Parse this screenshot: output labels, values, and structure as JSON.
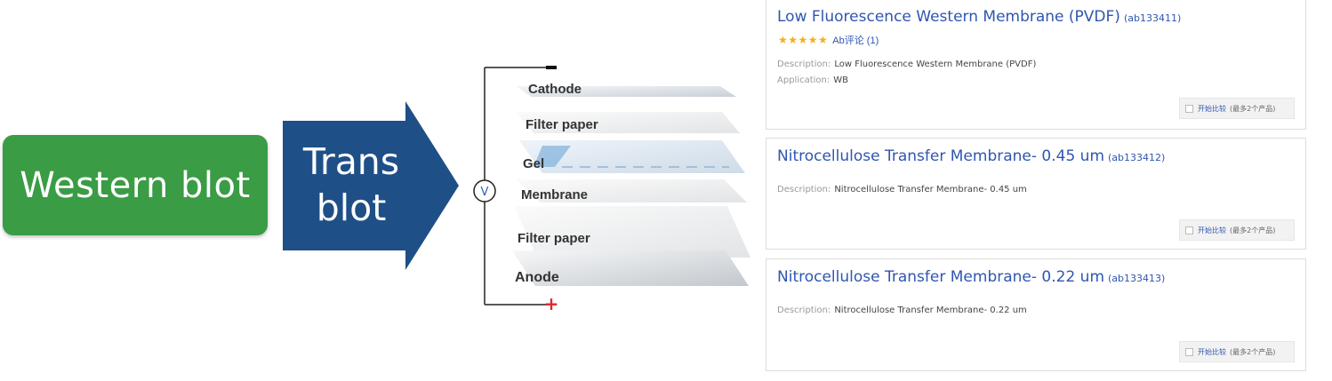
{
  "left_block": {
    "label": "Western blot",
    "color": "#3a9c45"
  },
  "arrow": {
    "line1": "Trans",
    "line2": "blot",
    "color": "#1f4f87"
  },
  "diagram": {
    "layers": [
      "Cathode",
      "Filter paper",
      "Gel",
      "Membrane",
      "Filter paper",
      "Anode"
    ],
    "voltmeter": "V",
    "plus": "+"
  },
  "products": [
    {
      "title": "Low Fluorescence Western Membrane (PVDF)",
      "code": "(ab133411)",
      "stars": "★★★★★",
      "review": "Ab评论 (1)",
      "desc_key": "Description:",
      "desc_val": "Low Fluorescence Western Membrane (PVDF)",
      "app_key": "Application:",
      "app_val": "WB",
      "compare_label": "开始比较",
      "compare_note": "(最多2个产品)"
    },
    {
      "title": "Nitrocellulose Transfer Membrane- 0.45 um",
      "code": "(ab133412)",
      "desc_key": "Description:",
      "desc_val": "Nitrocellulose Transfer Membrane- 0.45 um",
      "compare_label": "开始比较",
      "compare_note": "(最多2个产品)"
    },
    {
      "title": "Nitrocellulose Transfer Membrane- 0.22 um",
      "code": "(ab133413)",
      "desc_key": "Description:",
      "desc_val": "Nitrocellulose Transfer Membrane- 0.22 um",
      "compare_label": "开始比较",
      "compare_note": "(最多2个产品)"
    }
  ]
}
